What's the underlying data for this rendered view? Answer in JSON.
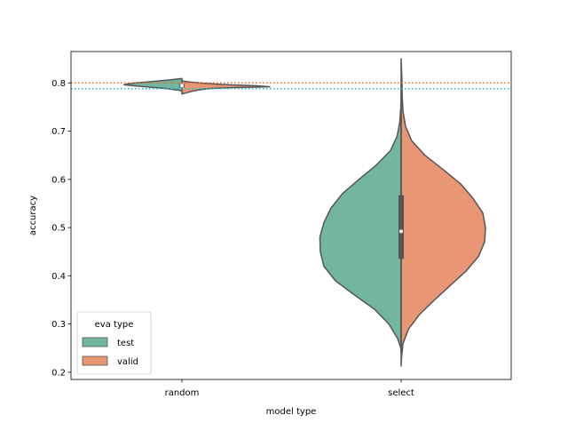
{
  "chart_data": {
    "type": "violin",
    "split": true,
    "xlabel": "model type",
    "ylabel": "accuracy",
    "ylim": [
      0.185,
      0.865
    ],
    "yticks": [
      0.2,
      0.3,
      0.4,
      0.5,
      0.6,
      0.7,
      0.8
    ],
    "categories": [
      "random",
      "select"
    ],
    "legend": {
      "title": "eva type",
      "position": "lower-left",
      "entries": [
        {
          "label": "test",
          "color": "#72b6a1"
        },
        {
          "label": "valid",
          "color": "#e99675"
        }
      ]
    },
    "colors": {
      "test": "#72b6a1",
      "valid": "#e99675",
      "outline": "#555555"
    },
    "reference_lines": [
      {
        "value": 0.8,
        "color": "#e8682a",
        "style": "dotted"
      },
      {
        "value": 0.788,
        "color": "#17becf",
        "style": "dotted"
      }
    ],
    "violins": [
      {
        "category": "random",
        "test": [
          [
            0.784,
            0.0
          ],
          [
            0.786,
            0.09
          ],
          [
            0.788,
            0.17
          ],
          [
            0.79,
            0.28
          ],
          [
            0.792,
            0.42
          ],
          [
            0.794,
            0.55
          ],
          [
            0.796,
            0.66
          ],
          [
            0.798,
            0.62
          ],
          [
            0.8,
            0.52
          ],
          [
            0.802,
            0.4
          ],
          [
            0.804,
            0.27
          ],
          [
            0.806,
            0.15
          ],
          [
            0.808,
            0.05
          ],
          [
            0.809,
            0.0
          ]
        ],
        "valid": [
          [
            0.777,
            0.0
          ],
          [
            0.779,
            0.04
          ],
          [
            0.782,
            0.1
          ],
          [
            0.785,
            0.18
          ],
          [
            0.788,
            0.3
          ],
          [
            0.79,
            0.52
          ],
          [
            0.792,
            1.0
          ],
          [
            0.794,
            0.85
          ],
          [
            0.796,
            0.55
          ],
          [
            0.798,
            0.35
          ],
          [
            0.8,
            0.2
          ],
          [
            0.802,
            0.09
          ],
          [
            0.804,
            0.0
          ]
        ],
        "box": {
          "q1": 0.791,
          "median": 0.7945,
          "q3": 0.798,
          "whisker_low": 0.787,
          "whisker_high": 0.803
        }
      },
      {
        "category": "select",
        "test": [
          [
            0.248,
            0.0
          ],
          [
            0.27,
            0.04
          ],
          [
            0.3,
            0.14
          ],
          [
            0.33,
            0.3
          ],
          [
            0.36,
            0.53
          ],
          [
            0.39,
            0.75
          ],
          [
            0.42,
            0.88
          ],
          [
            0.45,
            0.92
          ],
          [
            0.48,
            0.925
          ],
          [
            0.51,
            0.88
          ],
          [
            0.54,
            0.8
          ],
          [
            0.57,
            0.67
          ],
          [
            0.6,
            0.48
          ],
          [
            0.63,
            0.28
          ],
          [
            0.66,
            0.12
          ],
          [
            0.69,
            0.045
          ],
          [
            0.72,
            0.015
          ],
          [
            0.76,
            0.0
          ]
        ],
        "valid": [
          [
            0.213,
            0.0
          ],
          [
            0.23,
            0.004
          ],
          [
            0.26,
            0.022
          ],
          [
            0.29,
            0.085
          ],
          [
            0.32,
            0.21
          ],
          [
            0.35,
            0.38
          ],
          [
            0.38,
            0.56
          ],
          [
            0.41,
            0.74
          ],
          [
            0.44,
            0.88
          ],
          [
            0.47,
            0.95
          ],
          [
            0.5,
            0.96
          ],
          [
            0.53,
            0.93
          ],
          [
            0.56,
            0.82
          ],
          [
            0.59,
            0.68
          ],
          [
            0.62,
            0.48
          ],
          [
            0.65,
            0.27
          ],
          [
            0.68,
            0.12
          ],
          [
            0.71,
            0.05
          ],
          [
            0.74,
            0.022
          ],
          [
            0.77,
            0.012
          ],
          [
            0.8,
            0.01
          ],
          [
            0.82,
            0.006
          ],
          [
            0.85,
            0.0
          ]
        ],
        "box": {
          "q1": 0.435,
          "median": 0.492,
          "q3": 0.567,
          "whisker_low": 0.24,
          "whisker_high": 0.8
        }
      }
    ]
  }
}
